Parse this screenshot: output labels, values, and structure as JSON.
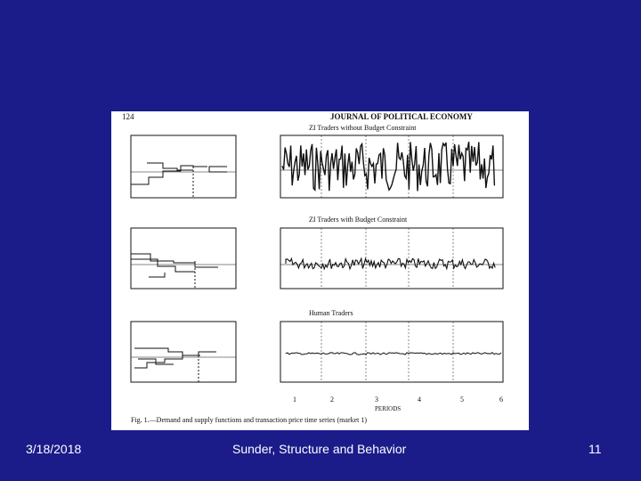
{
  "slide": {
    "footer_date": "3/18/2018",
    "footer_title": "Sunder, Structure and Behavior",
    "page_number": "11",
    "background_color": "#1b1b8a"
  },
  "figure": {
    "page_label": "124",
    "journal_header": "JOURNAL OF POLITICAL ECONOMY",
    "panel_titles": [
      "ZI Traders without Budget Constraint",
      "ZI Traders with Budget Constraint",
      "Human Traders"
    ],
    "x_axis_label": "PERIODS",
    "period_ticks": [
      "1",
      "2",
      "3",
      "4",
      "5",
      "6"
    ],
    "caption": "Fig. 1.—Demand and supply functions and transaction price time series (market 1)"
  }
}
